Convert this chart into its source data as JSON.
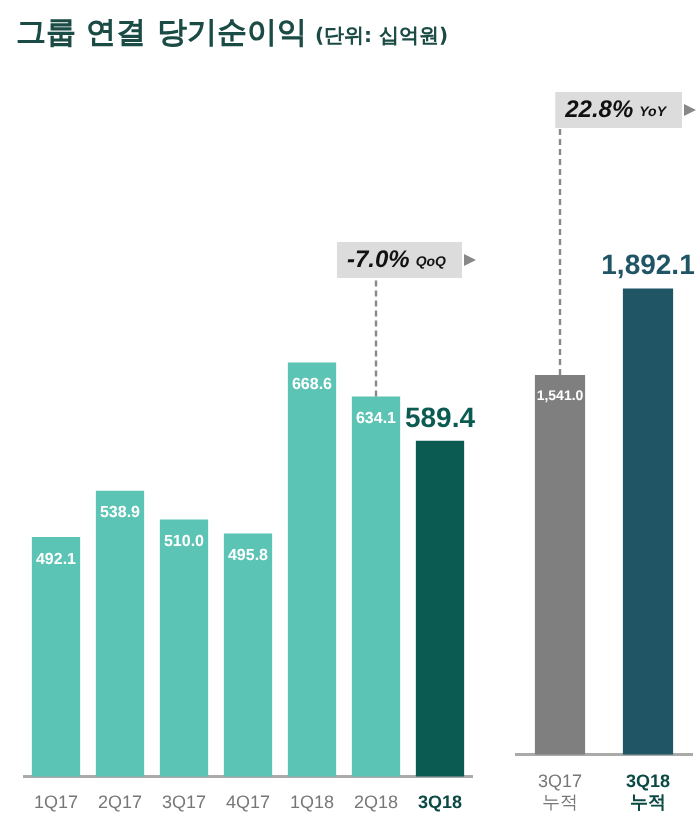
{
  "chart_data": [
    {
      "type": "bar",
      "title": "그룹 연결 당기순이익",
      "subtitle": "(단위: 십억원)",
      "categories": [
        "1Q17",
        "2Q17",
        "3Q17",
        "4Q17",
        "1Q18",
        "2Q18",
        "3Q18"
      ],
      "values": [
        492.1,
        538.9,
        510.0,
        495.8,
        668.6,
        634.1,
        589.4
      ],
      "colors": [
        "#5bc4b4",
        "#5bc4b4",
        "#5bc4b4",
        "#5bc4b4",
        "#5bc4b4",
        "#5bc4b4",
        "#0b5b52"
      ],
      "value_labels": [
        "492.1",
        "538.9",
        "510.0",
        "495.8",
        "668.6",
        "634.1",
        "589.4"
      ],
      "tick_labels": "x",
      "grid": false,
      "legend": false,
      "annotations": [
        {
          "text": "-7.0% QoQ",
          "x": "2Q18",
          "y": 634.1
        }
      ]
    },
    {
      "type": "bar",
      "categories": [
        "3Q17 누적",
        "3Q18 누적"
      ],
      "values": [
        1541.0,
        1892.1
      ],
      "colors": [
        "#7f7f7f",
        "#1f5564"
      ],
      "value_labels": [
        "1,541.0",
        "1,892.1"
      ],
      "tick_labels": "x",
      "grid": false,
      "legend": false,
      "annotations": [
        {
          "text": "22.8% YoY",
          "x": "3Q17 누적",
          "y": 1541.0
        }
      ]
    }
  ]
}
